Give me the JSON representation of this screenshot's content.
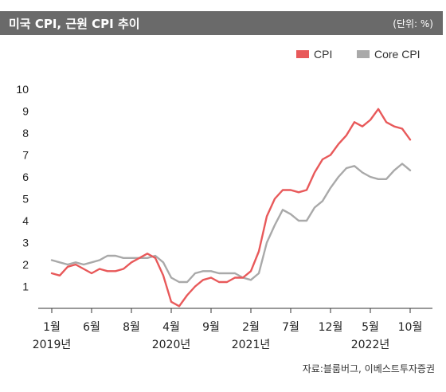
{
  "header": {
    "title": "미국 CPI, 근원 CPI 추이",
    "unit": "(단위: %)"
  },
  "source": "자료:블룸버그, 이베스트투자증권",
  "chart_data": {
    "type": "line",
    "title": "미국 CPI, 근원 CPI 추이",
    "ylabel": "",
    "xlabel": "",
    "ylim": [
      0,
      10
    ],
    "yticks": [
      "1",
      "2",
      "3",
      "4",
      "5",
      "6",
      "7",
      "8",
      "9",
      "10"
    ],
    "x_tick_labels": [
      {
        "month": "1월",
        "year": "2019년"
      },
      {
        "month": "6월",
        "year": ""
      },
      {
        "month": "8월",
        "year": ""
      },
      {
        "month": "4월",
        "year": "2020년"
      },
      {
        "month": "9월",
        "year": ""
      },
      {
        "month": "2월",
        "year": "2021년"
      },
      {
        "month": "7월",
        "year": ""
      },
      {
        "month": "12월",
        "year": ""
      },
      {
        "month": "5월",
        "year": "2022년"
      },
      {
        "month": "10월",
        "year": ""
      }
    ],
    "x": [
      "2019-01",
      "2019-02",
      "2019-03",
      "2019-04",
      "2019-05",
      "2019-06",
      "2019-07",
      "2019-08",
      "2019-09",
      "2019-10",
      "2019-11",
      "2019-12",
      "2020-01",
      "2020-02",
      "2020-03",
      "2020-04",
      "2020-05",
      "2020-06",
      "2020-07",
      "2020-08",
      "2020-09",
      "2020-10",
      "2020-11",
      "2020-12",
      "2021-01",
      "2021-02",
      "2021-03",
      "2021-04",
      "2021-05",
      "2021-06",
      "2021-07",
      "2021-08",
      "2021-09",
      "2021-10",
      "2021-11",
      "2021-12",
      "2022-01",
      "2022-02",
      "2022-03",
      "2022-04",
      "2022-05",
      "2022-06",
      "2022-07",
      "2022-08",
      "2022-09",
      "2022-10",
      "2022-11"
    ],
    "series": [
      {
        "name": "CPI",
        "color": "#e8595a",
        "values": [
          1.6,
          1.5,
          1.9,
          2.0,
          1.8,
          1.6,
          1.8,
          1.7,
          1.7,
          1.8,
          2.1,
          2.3,
          2.5,
          2.3,
          1.5,
          0.3,
          0.1,
          0.6,
          1.0,
          1.3,
          1.4,
          1.2,
          1.2,
          1.4,
          1.4,
          1.7,
          2.6,
          4.2,
          5.0,
          5.4,
          5.4,
          5.3,
          5.4,
          6.2,
          6.8,
          7.0,
          7.5,
          7.9,
          8.5,
          8.3,
          8.6,
          9.1,
          8.5,
          8.3,
          8.2,
          7.7,
          null
        ]
      },
      {
        "name": "Core CPI",
        "color": "#a9a9a9",
        "values": [
          2.2,
          2.1,
          2.0,
          2.1,
          2.0,
          2.1,
          2.2,
          2.4,
          2.4,
          2.3,
          2.3,
          2.3,
          2.3,
          2.4,
          2.1,
          1.4,
          1.2,
          1.2,
          1.6,
          1.7,
          1.7,
          1.6,
          1.6,
          1.6,
          1.4,
          1.3,
          1.6,
          3.0,
          3.8,
          4.5,
          4.3,
          4.0,
          4.0,
          4.6,
          4.9,
          5.5,
          6.0,
          6.4,
          6.5,
          6.2,
          6.0,
          5.9,
          5.9,
          6.3,
          6.6,
          6.3,
          null
        ]
      }
    ],
    "legend": "top-right",
    "grid": false
  }
}
